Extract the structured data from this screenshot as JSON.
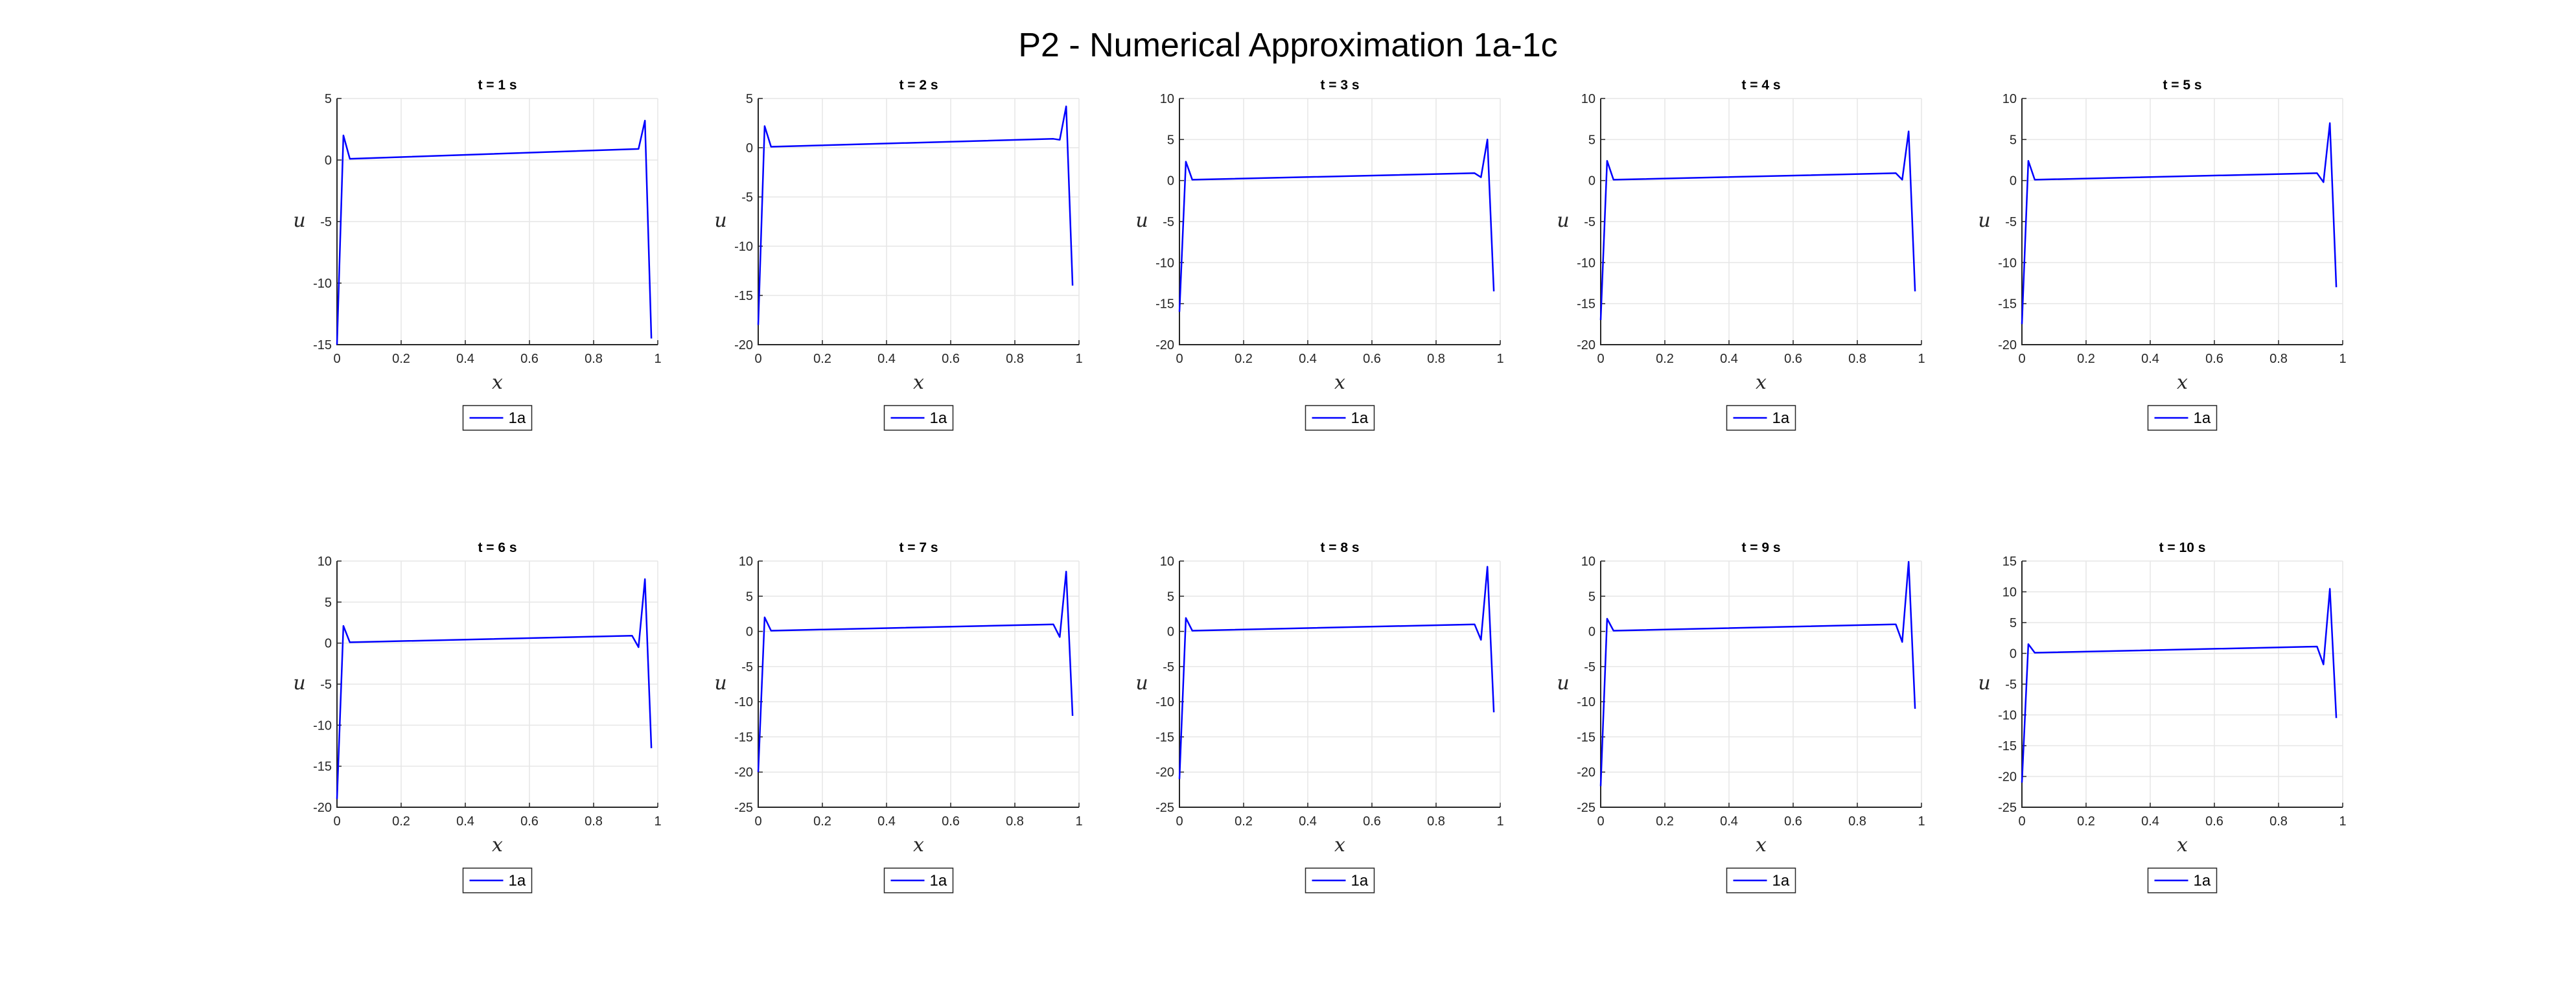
{
  "figure": {
    "title": "P2 - Numerical Approximation 1a-1c"
  },
  "colors": {
    "line": "#0000ff",
    "axis": "#262626",
    "grid": "#e6e6e6"
  },
  "chart_data": [
    {
      "type": "line",
      "title": "t = 1 s",
      "xlabel": "x",
      "ylabel": "u",
      "xlim": [
        0,
        1
      ],
      "ylim": [
        -15,
        5
      ],
      "xticks": [
        "0",
        "0.2",
        "0.4",
        "0.6",
        "0.8",
        "1"
      ],
      "yticks": [
        "5",
        "0",
        "-5",
        "-10",
        "-15"
      ],
      "legend": {
        "position": "below"
      },
      "series": [
        {
          "name": "1a",
          "x": [
            0,
            0.02,
            0.04,
            0.94,
            0.96,
            0.98
          ],
          "y": [
            -15,
            2,
            0.1,
            0.9,
            3.2,
            -14.5
          ]
        }
      ]
    },
    {
      "type": "line",
      "title": "t = 2 s",
      "xlabel": "x",
      "ylabel": "u",
      "xlim": [
        0,
        1
      ],
      "ylim": [
        -20,
        5
      ],
      "xticks": [
        "0",
        "0.2",
        "0.4",
        "0.6",
        "0.8",
        "1"
      ],
      "yticks": [
        "5",
        "0",
        "-5",
        "-10",
        "-15",
        "-20"
      ],
      "legend": {
        "position": "below"
      },
      "series": [
        {
          "name": "1a",
          "x": [
            0,
            0.02,
            0.04,
            0.92,
            0.94,
            0.96,
            0.98
          ],
          "y": [
            -18,
            2.2,
            0.1,
            0.9,
            0.8,
            4.2,
            -14
          ]
        }
      ]
    },
    {
      "type": "line",
      "title": "t = 3 s",
      "xlabel": "x",
      "ylabel": "u",
      "xlim": [
        0,
        1
      ],
      "ylim": [
        -20,
        10
      ],
      "xticks": [
        "0",
        "0.2",
        "0.4",
        "0.6",
        "0.8",
        "1"
      ],
      "yticks": [
        "10",
        "5",
        "0",
        "-5",
        "-10",
        "-15",
        "-20"
      ],
      "legend": {
        "position": "below"
      },
      "series": [
        {
          "name": "1a",
          "x": [
            0,
            0.02,
            0.04,
            0.92,
            0.94,
            0.96,
            0.98
          ],
          "y": [
            -16,
            2.3,
            0.1,
            0.9,
            0.4,
            5,
            -13.5
          ]
        }
      ]
    },
    {
      "type": "line",
      "title": "t = 4 s",
      "xlabel": "x",
      "ylabel": "u",
      "xlim": [
        0,
        1
      ],
      "ylim": [
        -20,
        10
      ],
      "xticks": [
        "0",
        "0.2",
        "0.4",
        "0.6",
        "0.8",
        "1"
      ],
      "yticks": [
        "10",
        "5",
        "0",
        "-5",
        "-10",
        "-15",
        "-20"
      ],
      "legend": {
        "position": "below"
      },
      "series": [
        {
          "name": "1a",
          "x": [
            0,
            0.02,
            0.04,
            0.92,
            0.94,
            0.96,
            0.98
          ],
          "y": [
            -17,
            2.4,
            0.1,
            0.9,
            0.1,
            6,
            -13.5
          ]
        }
      ]
    },
    {
      "type": "line",
      "title": "t = 5 s",
      "xlabel": "x",
      "ylabel": "u",
      "xlim": [
        0,
        1
      ],
      "ylim": [
        -20,
        10
      ],
      "xticks": [
        "0",
        "0.2",
        "0.4",
        "0.6",
        "0.8",
        "1"
      ],
      "yticks": [
        "10",
        "5",
        "0",
        "-5",
        "-10",
        "-15",
        "-20"
      ],
      "legend": {
        "position": "below"
      },
      "series": [
        {
          "name": "1a",
          "x": [
            0,
            0.02,
            0.04,
            0.92,
            0.94,
            0.96,
            0.98
          ],
          "y": [
            -17.5,
            2.4,
            0.1,
            0.9,
            -0.2,
            7,
            -13
          ]
        }
      ]
    },
    {
      "type": "line",
      "title": "t = 6 s",
      "xlabel": "x",
      "ylabel": "u",
      "xlim": [
        0,
        1
      ],
      "ylim": [
        -20,
        10
      ],
      "xticks": [
        "0",
        "0.2",
        "0.4",
        "0.6",
        "0.8",
        "1"
      ],
      "yticks": [
        "10",
        "5",
        "0",
        "-5",
        "-10",
        "-15",
        "-20"
      ],
      "legend": {
        "position": "below"
      },
      "series": [
        {
          "name": "1a",
          "x": [
            0,
            0.02,
            0.04,
            0.92,
            0.94,
            0.96,
            0.98
          ],
          "y": [
            -19,
            2.1,
            0.1,
            0.9,
            -0.5,
            7.8,
            -12.8
          ]
        }
      ]
    },
    {
      "type": "line",
      "title": "t = 7 s",
      "xlabel": "x",
      "ylabel": "u",
      "xlim": [
        0,
        1
      ],
      "ylim": [
        -25,
        10
      ],
      "xticks": [
        "0",
        "0.2",
        "0.4",
        "0.6",
        "0.8",
        "1"
      ],
      "yticks": [
        "10",
        "5",
        "0",
        "-5",
        "-10",
        "-15",
        "-20",
        "-25"
      ],
      "legend": {
        "position": "below"
      },
      "series": [
        {
          "name": "1a",
          "x": [
            0,
            0.02,
            0.04,
            0.92,
            0.94,
            0.96,
            0.98
          ],
          "y": [
            -20,
            2,
            0.1,
            1,
            -0.8,
            8.5,
            -12
          ]
        }
      ]
    },
    {
      "type": "line",
      "title": "t = 8 s",
      "xlabel": "x",
      "ylabel": "u",
      "xlim": [
        0,
        1
      ],
      "ylim": [
        -25,
        10
      ],
      "xticks": [
        "0",
        "0.2",
        "0.4",
        "0.6",
        "0.8",
        "1"
      ],
      "yticks": [
        "10",
        "5",
        "0",
        "-5",
        "-10",
        "-15",
        "-20",
        "-25"
      ],
      "legend": {
        "position": "below"
      },
      "series": [
        {
          "name": "1a",
          "x": [
            0,
            0.02,
            0.04,
            0.92,
            0.94,
            0.96,
            0.98
          ],
          "y": [
            -21,
            1.9,
            0.1,
            1,
            -1.2,
            9.2,
            -11.5
          ]
        }
      ]
    },
    {
      "type": "line",
      "title": "t = 9 s",
      "xlabel": "x",
      "ylabel": "u",
      "xlim": [
        0,
        1
      ],
      "ylim": [
        -25,
        10
      ],
      "xticks": [
        "0",
        "0.2",
        "0.4",
        "0.6",
        "0.8",
        "1"
      ],
      "yticks": [
        "10",
        "5",
        "0",
        "-5",
        "-10",
        "-15",
        "-20",
        "-25"
      ],
      "legend": {
        "position": "below"
      },
      "series": [
        {
          "name": "1a",
          "x": [
            0,
            0.02,
            0.04,
            0.92,
            0.94,
            0.96,
            0.98
          ],
          "y": [
            -22,
            1.8,
            0.1,
            1,
            -1.5,
            9.9,
            -11
          ]
        }
      ]
    },
    {
      "type": "line",
      "title": "t = 10 s",
      "xlabel": "x",
      "ylabel": "u",
      "xlim": [
        0,
        1
      ],
      "ylim": [
        -25,
        15
      ],
      "xticks": [
        "0",
        "0.2",
        "0.4",
        "0.6",
        "0.8",
        "1"
      ],
      "yticks": [
        "15",
        "10",
        "5",
        "0",
        "-5",
        "-10",
        "-15",
        "-20",
        "-25"
      ],
      "legend": {
        "position": "below"
      },
      "series": [
        {
          "name": "1a",
          "x": [
            0,
            0.02,
            0.04,
            0.92,
            0.94,
            0.96,
            0.98
          ],
          "y": [
            -21,
            1.5,
            0.1,
            1.1,
            -1.8,
            10.5,
            -10.5
          ]
        }
      ]
    }
  ]
}
